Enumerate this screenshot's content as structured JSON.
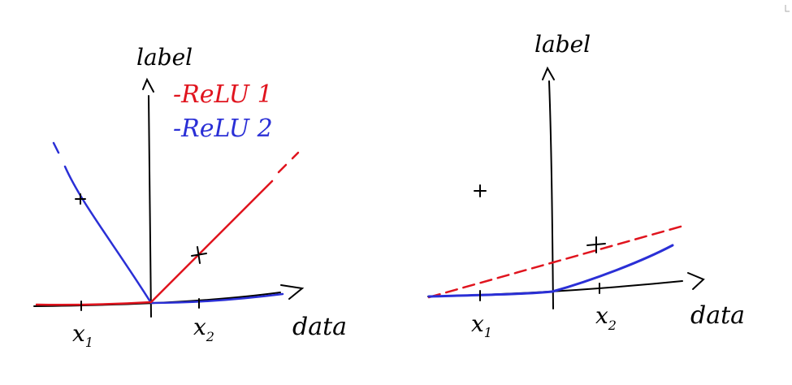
{
  "colors": {
    "axis": "#000000",
    "relu1": "#e0141e",
    "relu2": "#2a2fd6"
  },
  "left_panel": {
    "ylabel": "label",
    "xlabel": "data",
    "legend": [
      {
        "label": "-ReLU 1",
        "color": "#e0141e"
      },
      {
        "label": "-ReLU 2",
        "color": "#2a2fd6"
      }
    ],
    "ticks": [
      {
        "label": "x",
        "sub": "1"
      },
      {
        "label": "x",
        "sub": "2"
      }
    ]
  },
  "right_panel": {
    "ylabel": "label",
    "xlabel": "data",
    "ticks": [
      {
        "label": "x",
        "sub": "1"
      },
      {
        "label": "x",
        "sub": "2"
      }
    ]
  }
}
